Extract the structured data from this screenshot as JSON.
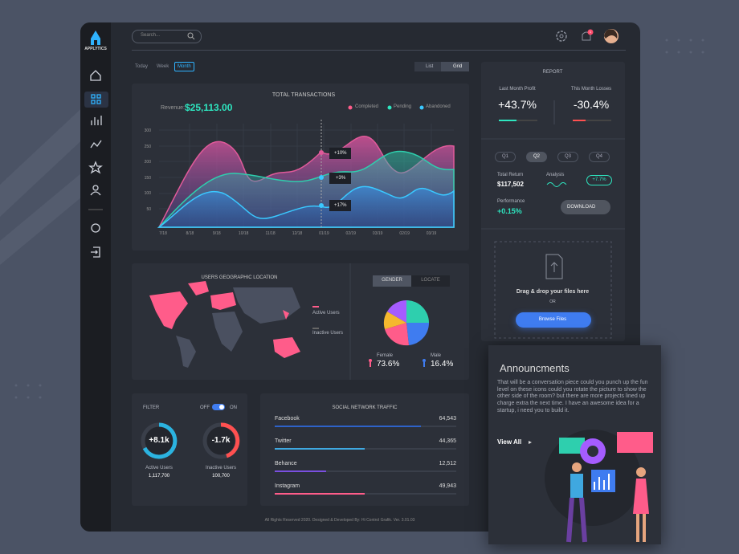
{
  "brand": "APPLYTICS",
  "search": "Search...",
  "notification_count": "1",
  "tabs": [
    "Today",
    "Week",
    "Month"
  ],
  "views": [
    "List",
    "Grid"
  ],
  "transactions": {
    "title": "TOTAL TRANSACTIONS",
    "revenue_label": "Revenue:",
    "revenue": "$25,113.00",
    "legend": [
      "Completed",
      "Pending",
      "Abandoned"
    ],
    "y_labels": [
      "300",
      "250",
      "200",
      "150",
      "100",
      "50"
    ],
    "x_labels": [
      "7/18",
      "8/18",
      "9/18",
      "10/18",
      "11/18",
      "12/18",
      "01/19",
      "02/19",
      "03/19",
      "02/19",
      "03/19"
    ],
    "callouts": [
      "+10%",
      "+3%",
      "+17%"
    ]
  },
  "report": {
    "title": "REPORT",
    "profit_label": "Last Month Profit",
    "profit": "+43.7%",
    "loss_label": "This Month Losses",
    "loss": "-30.4%",
    "quarters": [
      "Q1",
      "Q2",
      "Q3",
      "Q4"
    ],
    "return_label": "Total Return",
    "return_value": "$117,502",
    "analysis_label": "Analysis",
    "analysis_value": "+7.7%",
    "performance_label": "Performance",
    "performance_value": "+0.15%",
    "download": "DOWNLOAD"
  },
  "upload": {
    "text": "Drag & drop your files here",
    "or": "OR",
    "button": "Browse Files"
  },
  "geo": {
    "title": "USERS GEOGRAPHIC LOCATION",
    "legend": [
      "Active Users",
      "Inactive Users"
    ]
  },
  "gender": {
    "tabs": [
      "GENDER",
      "LOCATE"
    ],
    "female_label": "Female",
    "female": "73.6%",
    "male_label": "Male",
    "male": "16.4%"
  },
  "filter": {
    "title": "FILTER",
    "off": "OFF",
    "on": "ON",
    "active_change": "+8.1k",
    "active_label": "Active Users",
    "active_value": "1,117,700",
    "inactive_change": "-1.7k",
    "inactive_label": "Inactive Users",
    "inactive_value": "100,700"
  },
  "social": {
    "title": "SOCIAL NETWORK TRAFFIC",
    "rows": [
      [
        "Facebook",
        "64,543"
      ],
      [
        "Twitter",
        "44,365"
      ],
      [
        "Behance",
        "12,512"
      ],
      [
        "Instagram",
        "49,943"
      ]
    ]
  },
  "footer": "All Rights Reserved 2020. Designed & Developed By: Hi Control Grafik. Ver. 3.01.03",
  "announcement": {
    "title": "Announcments",
    "text": "That will be a conversation piece could you punch up the fun level on these icons could you rotate the picture to show the other side of the room? but there are more projects lined up charge extra the next time. I have an awesome idea for a startup, i need you to build it.",
    "link": "View All"
  }
}
